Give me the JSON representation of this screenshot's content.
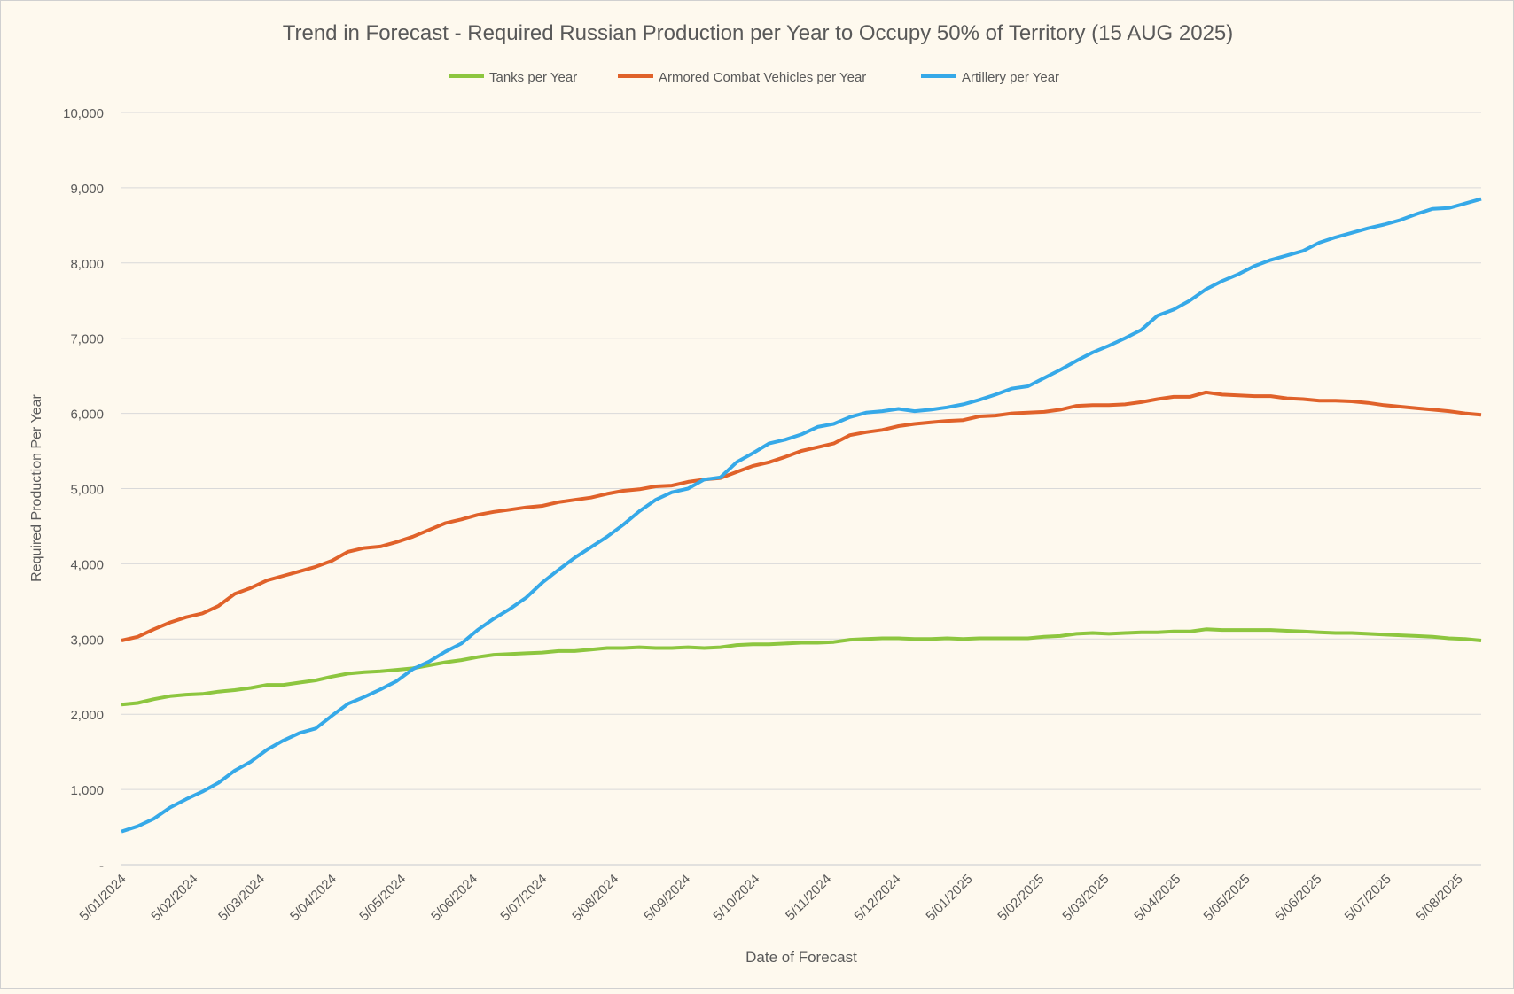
{
  "chart_data": {
    "type": "line",
    "title": "Trend in Forecast - Required Russian Production per Year to Occupy 50% of Territory (15 AUG 2025)",
    "xlabel": "Date of Forecast",
    "ylabel": "Required Production Per Year",
    "ylim": [
      0,
      10000
    ],
    "y_ticks": [
      0,
      1000,
      2000,
      3000,
      4000,
      5000,
      6000,
      7000,
      8000,
      9000,
      10000
    ],
    "y_tick_labels": [
      "-",
      "1,000",
      "2,000",
      "3,000",
      "4,000",
      "5,000",
      "6,000",
      "7,000",
      "8,000",
      "9,000",
      "10,000"
    ],
    "x_range": [
      "2024-01-05",
      "2025-08-15"
    ],
    "x_tick_dates": [
      "2024-01-05",
      "2024-02-05",
      "2024-03-05",
      "2024-04-05",
      "2024-05-05",
      "2024-06-05",
      "2024-07-05",
      "2024-08-05",
      "2024-09-05",
      "2024-10-05",
      "2024-11-05",
      "2024-12-05",
      "2025-01-05",
      "2025-02-05",
      "2025-03-05",
      "2025-04-05",
      "2025-05-05",
      "2025-06-05",
      "2025-07-05",
      "2025-08-05"
    ],
    "x_tick_labels": [
      "5/01/2024",
      "5/02/2024",
      "5/03/2024",
      "5/04/2024",
      "5/05/2024",
      "5/06/2024",
      "5/07/2024",
      "5/08/2024",
      "5/09/2024",
      "5/10/2024",
      "5/11/2024",
      "5/12/2024",
      "5/01/2025",
      "5/02/2025",
      "5/03/2025",
      "5/04/2025",
      "5/05/2025",
      "5/06/2025",
      "5/07/2025",
      "5/08/2025"
    ],
    "grid": "horizontal",
    "legend_position": "top",
    "x": [
      "2024-01-05",
      "2024-01-12",
      "2024-01-19",
      "2024-01-26",
      "2024-02-02",
      "2024-02-09",
      "2024-02-16",
      "2024-02-23",
      "2024-03-01",
      "2024-03-08",
      "2024-03-15",
      "2024-03-22",
      "2024-03-29",
      "2024-04-05",
      "2024-04-12",
      "2024-04-19",
      "2024-04-26",
      "2024-05-03",
      "2024-05-10",
      "2024-05-17",
      "2024-05-24",
      "2024-05-31",
      "2024-06-07",
      "2024-06-14",
      "2024-06-21",
      "2024-06-28",
      "2024-07-05",
      "2024-07-12",
      "2024-07-19",
      "2024-07-26",
      "2024-08-02",
      "2024-08-09",
      "2024-08-16",
      "2024-08-23",
      "2024-08-30",
      "2024-09-06",
      "2024-09-13",
      "2024-09-20",
      "2024-09-27",
      "2024-10-04",
      "2024-10-11",
      "2024-10-18",
      "2024-10-25",
      "2024-11-01",
      "2024-11-08",
      "2024-11-15",
      "2024-11-22",
      "2024-11-29",
      "2024-12-06",
      "2024-12-13",
      "2024-12-20",
      "2024-12-27",
      "2025-01-03",
      "2025-01-10",
      "2025-01-17",
      "2025-01-24",
      "2025-01-31",
      "2025-02-07",
      "2025-02-14",
      "2025-02-21",
      "2025-02-28",
      "2025-03-07",
      "2025-03-14",
      "2025-03-21",
      "2025-03-28",
      "2025-04-04",
      "2025-04-11",
      "2025-04-18",
      "2025-04-25",
      "2025-05-02",
      "2025-05-09",
      "2025-05-16",
      "2025-05-23",
      "2025-05-30",
      "2025-06-06",
      "2025-06-13",
      "2025-06-20",
      "2025-06-27",
      "2025-07-04",
      "2025-07-11",
      "2025-07-18",
      "2025-07-25",
      "2025-08-01",
      "2025-08-08",
      "2025-08-15"
    ],
    "series": [
      {
        "name": "Tanks per Year",
        "color": "#8dc63f",
        "values": [
          2130,
          2150,
          2200,
          2240,
          2260,
          2270,
          2300,
          2320,
          2350,
          2390,
          2390,
          2420,
          2450,
          2500,
          2540,
          2560,
          2570,
          2590,
          2610,
          2650,
          2690,
          2720,
          2760,
          2790,
          2800,
          2810,
          2820,
          2840,
          2840,
          2860,
          2880,
          2880,
          2890,
          2880,
          2880,
          2890,
          2880,
          2890,
          2920,
          2930,
          2930,
          2940,
          2950,
          2950,
          2960,
          2990,
          3000,
          3010,
          3010,
          3000,
          3000,
          3010,
          3000,
          3010,
          3010,
          3010,
          3010,
          3030,
          3040,
          3070,
          3080,
          3070,
          3080,
          3090,
          3090,
          3100,
          3100,
          3130,
          3120,
          3120,
          3120,
          3120,
          3110,
          3100,
          3090,
          3080,
          3080,
          3070,
          3060,
          3050,
          3040,
          3030,
          3010,
          3000,
          2980
        ]
      },
      {
        "name": "Armored Combat Vehicles per Year",
        "color": "#e0622a",
        "values": [
          2980,
          3030,
          3130,
          3220,
          3290,
          3340,
          3440,
          3600,
          3680,
          3780,
          3840,
          3900,
          3960,
          4040,
          4160,
          4210,
          4230,
          4290,
          4360,
          4450,
          4540,
          4590,
          4650,
          4690,
          4720,
          4750,
          4770,
          4820,
          4850,
          4880,
          4930,
          4970,
          4990,
          5030,
          5040,
          5090,
          5120,
          5140,
          5220,
          5300,
          5350,
          5420,
          5500,
          5550,
          5600,
          5710,
          5750,
          5780,
          5830,
          5860,
          5880,
          5900,
          5910,
          5960,
          5970,
          6000,
          6010,
          6020,
          6050,
          6100,
          6110,
          6110,
          6120,
          6150,
          6190,
          6220,
          6220,
          6280,
          6250,
          6240,
          6230,
          6230,
          6200,
          6190,
          6170,
          6170,
          6160,
          6140,
          6110,
          6090,
          6070,
          6050,
          6030,
          6000,
          5980
        ]
      },
      {
        "name": "Artillery per Year",
        "color": "#36a9e8",
        "values": [
          440,
          510,
          610,
          760,
          870,
          970,
          1090,
          1250,
          1370,
          1530,
          1650,
          1750,
          1810,
          1980,
          2140,
          2230,
          2330,
          2440,
          2600,
          2700,
          2830,
          2940,
          3120,
          3270,
          3400,
          3550,
          3750,
          3920,
          4080,
          4220,
          4360,
          4520,
          4700,
          4850,
          4950,
          5000,
          5120,
          5150,
          5350,
          5470,
          5600,
          5650,
          5720,
          5820,
          5860,
          5950,
          6010,
          6030,
          6060,
          6030,
          6050,
          6080,
          6120,
          6180,
          6250,
          6330,
          6360,
          6470,
          6580,
          6700,
          6810,
          6900,
          7000,
          7110,
          7300,
          7380,
          7500,
          7650,
          7760,
          7850,
          7960,
          8040,
          8100,
          8160,
          8270,
          8340,
          8400,
          8460,
          8510,
          8570,
          8650,
          8720,
          8730,
          8790,
          8850
        ]
      }
    ]
  }
}
